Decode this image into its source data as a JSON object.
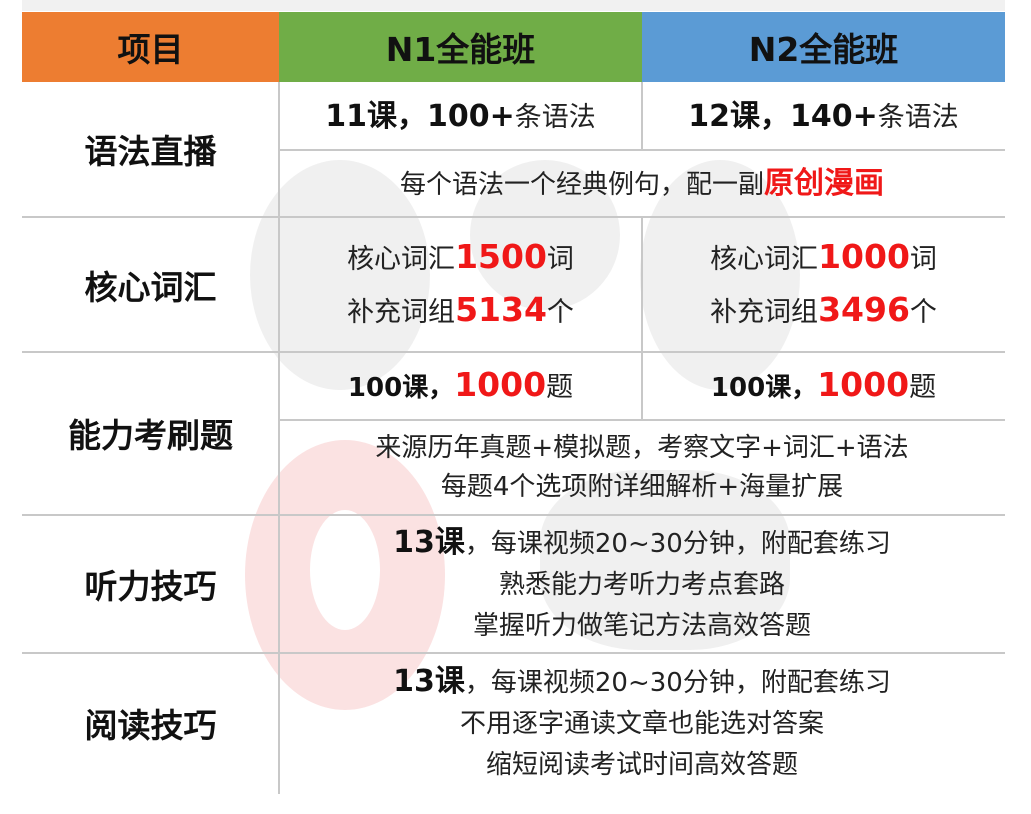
{
  "colors": {
    "orange": "#ed7d31",
    "green": "#70ad47",
    "blue": "#5b9bd5",
    "highlight": "#f01818"
  },
  "header": {
    "col0": "项目",
    "col1": "N1全能班",
    "col2": "N2全能班"
  },
  "rows": {
    "grammar": {
      "label": "语法直播",
      "n1": {
        "count": "11课，100+",
        "unit": "条语法"
      },
      "n2": {
        "count": "12课，140+",
        "unit": "条语法"
      },
      "shared": {
        "text": "每个语法一个经典例句，配一副",
        "highlight": "原创漫画"
      }
    },
    "vocab": {
      "label": "核心词汇",
      "n1": {
        "l1a": "核心词汇",
        "l1n": "1500",
        "l1b": "词",
        "l2a": "补充词组",
        "l2n": "5134",
        "l2b": "个"
      },
      "n2": {
        "l1a": "核心词汇",
        "l1n": "1000",
        "l1b": "词",
        "l2a": "补充词组",
        "l2n": "3496",
        "l2b": "个"
      }
    },
    "drill": {
      "label": "能力考刷题",
      "n1": {
        "a": "100课，",
        "n": "1000",
        "b": "题"
      },
      "n2": {
        "a": "100课，",
        "n": "1000",
        "b": "题"
      },
      "shared": {
        "line1": "来源历年真题+模拟题，考察文字+词汇+语法",
        "line2": "每题4个选项附详细解析+海量扩展"
      }
    },
    "listening": {
      "label": "听力技巧",
      "bold": "13课",
      "line1": "，每课视频20~30分钟，附配套练习",
      "line2": "熟悉能力考听力考点套路",
      "line3": "掌握听力做笔记方法高效答题"
    },
    "reading": {
      "label": "阅读技巧",
      "bold": "13课",
      "line1": "，每课视频20~30分钟，附配套练习",
      "line2": "不用逐字通读文章也能选对答案",
      "line3": "缩短阅读考试时间高效答题"
    }
  }
}
